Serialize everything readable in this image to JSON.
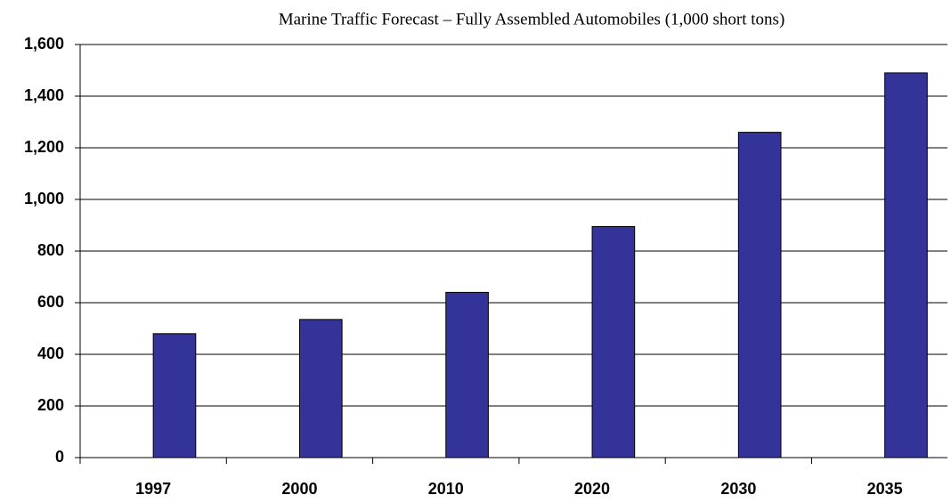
{
  "chart_data": {
    "type": "bar",
    "title": "Marine Traffic Forecast – Fully Assembled Automobiles (1,000 short tons)",
    "categories": [
      "1997",
      "2000",
      "2010",
      "2020",
      "2030",
      "2035"
    ],
    "values": [
      480,
      535,
      640,
      895,
      1260,
      1490
    ],
    "color": "#333399",
    "ylim": [
      0,
      1600
    ],
    "yticks": [
      0,
      200,
      400,
      600,
      800,
      {
        "value": 1000,
        "label": "1,000"
      },
      {
        "value": 1200,
        "label": "1,200"
      },
      {
        "value": 1400,
        "label": "1,400"
      },
      {
        "value": 1600,
        "label": "1,600"
      }
    ],
    "grid": true
  }
}
